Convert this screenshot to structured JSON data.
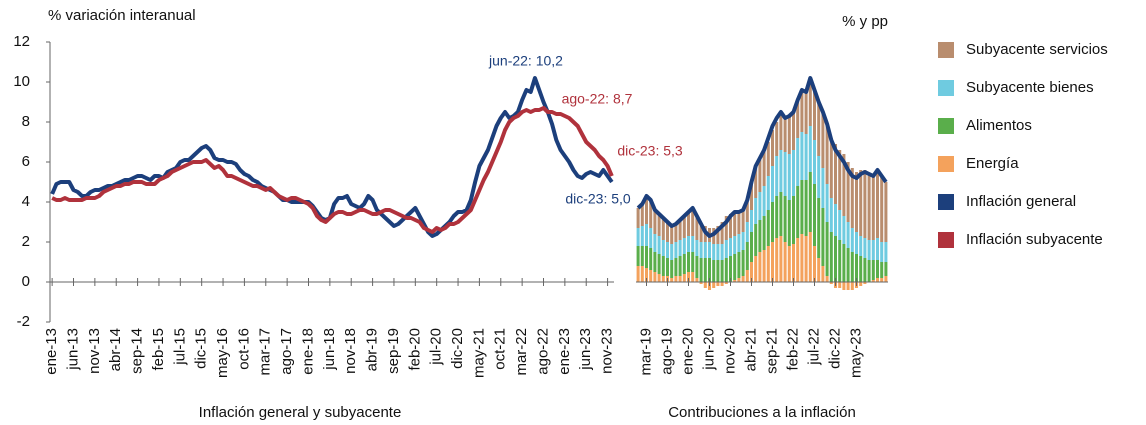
{
  "chart_data": [
    {
      "type": "line",
      "ylabel": "% variación interanual",
      "xlabel": "Inflación general y subyacente",
      "ylim": [
        -2,
        12
      ],
      "yticks": [
        -2,
        0,
        2,
        4,
        6,
        8,
        10,
        12
      ],
      "grid": false,
      "categories": [
        "ene-13",
        null,
        null,
        null,
        null,
        "jun-13",
        null,
        null,
        null,
        null,
        "nov-13",
        null,
        null,
        null,
        null,
        "abr-14",
        null,
        null,
        null,
        null,
        "sep-14",
        null,
        null,
        null,
        null,
        "feb-15",
        null,
        null,
        null,
        null,
        "jul-15",
        null,
        null,
        null,
        null,
        "dic-15",
        null,
        null,
        null,
        null,
        "may-16",
        null,
        null,
        null,
        null,
        "oct-16",
        null,
        null,
        null,
        null,
        "mar-17",
        null,
        null,
        null,
        null,
        "ago-17",
        null,
        null,
        null,
        null,
        "ene-18",
        null,
        null,
        null,
        null,
        "jun-18",
        null,
        null,
        null,
        null,
        "nov-18",
        null,
        null,
        null,
        null,
        "abr-19",
        null,
        null,
        null,
        null,
        "sep-19",
        null,
        null,
        null,
        null,
        "feb-20",
        null,
        null,
        null,
        null,
        "jul-20",
        null,
        null,
        null,
        null,
        "dic-20",
        null,
        null,
        null,
        null,
        "may-21",
        null,
        null,
        null,
        null,
        "oct-21",
        null,
        null,
        null,
        null,
        "mar-22",
        null,
        null,
        null,
        null,
        "ago-22",
        null,
        null,
        null,
        null,
        "ene-23",
        null,
        null,
        null,
        null,
        "jun-23",
        null,
        null,
        null,
        null,
        "nov-23",
        null
      ],
      "series": [
        {
          "name": "Inflación general",
          "color": "#1c3f7c",
          "values": [
            4.4,
            4.9,
            5.0,
            5.0,
            5.0,
            4.6,
            4.5,
            4.3,
            4.3,
            4.5,
            4.6,
            4.6,
            4.7,
            4.8,
            4.8,
            4.9,
            5.0,
            5.1,
            5.1,
            5.2,
            5.3,
            5.3,
            5.2,
            5.1,
            5.3,
            5.3,
            5.2,
            5.5,
            5.6,
            5.7,
            6.0,
            6.1,
            6.1,
            6.3,
            6.5,
            6.7,
            6.8,
            6.6,
            6.2,
            6.1,
            6.1,
            6.0,
            6.0,
            5.9,
            5.6,
            5.4,
            5.3,
            5.1,
            5.0,
            4.8,
            4.7,
            4.6,
            4.5,
            4.3,
            4.1,
            4.1,
            4.0,
            4.0,
            4.0,
            4.0,
            4.0,
            3.8,
            3.5,
            3.2,
            3.1,
            3.2,
            3.9,
            4.2,
            4.2,
            4.3,
            3.9,
            3.8,
            3.7,
            3.9,
            4.3,
            4.1,
            3.6,
            3.4,
            3.2,
            3.0,
            2.8,
            2.9,
            3.1,
            3.3,
            3.5,
            3.7,
            3.3,
            2.9,
            2.5,
            2.3,
            2.4,
            2.6,
            2.8,
            3.0,
            3.3,
            3.5,
            3.5,
            3.6,
            4.1,
            5.0,
            5.8,
            6.2,
            6.6,
            7.2,
            7.8,
            8.2,
            8.5,
            8.2,
            8.3,
            8.5,
            9.1,
            9.6,
            9.5,
            10.2,
            9.6,
            9.0,
            8.5,
            7.9,
            7.1,
            6.6,
            6.3,
            6.0,
            5.6,
            5.3,
            5.2,
            5.4,
            5.5,
            5.4,
            5.3,
            5.6,
            5.3,
            5.0
          ]
        },
        {
          "name": "Inflación subyacente",
          "color": "#b0323c",
          "values": [
            4.2,
            4.1,
            4.1,
            4.2,
            4.1,
            4.1,
            4.1,
            4.1,
            4.2,
            4.2,
            4.2,
            4.3,
            4.5,
            4.6,
            4.7,
            4.8,
            4.8,
            4.9,
            4.9,
            5.0,
            5.0,
            5.0,
            4.9,
            4.9,
            4.9,
            5.1,
            5.2,
            5.3,
            5.5,
            5.6,
            5.7,
            5.8,
            5.9,
            6.0,
            6.0,
            6.0,
            6.1,
            5.9,
            5.7,
            5.8,
            5.6,
            5.3,
            5.3,
            5.2,
            5.1,
            5.0,
            4.9,
            4.8,
            4.8,
            4.7,
            4.6,
            4.7,
            4.5,
            4.3,
            4.2,
            4.1,
            4.2,
            4.2,
            4.1,
            4.0,
            3.9,
            3.7,
            3.3,
            3.1,
            3.0,
            3.2,
            3.4,
            3.5,
            3.5,
            3.4,
            3.4,
            3.5,
            3.6,
            3.6,
            3.5,
            3.4,
            3.4,
            3.5,
            3.6,
            3.6,
            3.5,
            3.4,
            3.3,
            3.2,
            3.2,
            3.1,
            3.0,
            2.7,
            2.6,
            2.5,
            2.7,
            2.6,
            2.7,
            2.9,
            2.9,
            3.0,
            3.2,
            3.4,
            3.6,
            4.1,
            4.6,
            5.1,
            5.5,
            6.0,
            6.5,
            7.0,
            7.6,
            8.0,
            8.2,
            8.3,
            8.5,
            8.6,
            8.5,
            8.6,
            8.6,
            8.7,
            8.5,
            8.5,
            8.4,
            8.4,
            8.3,
            8.2,
            8.0,
            7.8,
            7.4,
            7.0,
            6.8,
            6.6,
            6.3,
            6.1,
            5.8,
            5.3
          ]
        }
      ],
      "annotations": [
        {
          "text": "jun-22: 10,2",
          "color": "#1c3f7c"
        },
        {
          "text": "ago-22: 8,7",
          "color": "#b0323c"
        },
        {
          "text": "dic-23: 5,3",
          "color": "#b0323c"
        },
        {
          "text": "dic-23: 5,0",
          "color": "#1c3f7c"
        }
      ]
    },
    {
      "type": "bar",
      "stacked": true,
      "ylabel": "% y pp",
      "xlabel": "Contribuciones a la inflación",
      "ylim": [
        -2,
        12
      ],
      "categories": [
        null,
        null,
        "mar-19",
        null,
        null,
        null,
        null,
        "ago-19",
        null,
        null,
        null,
        null,
        "ene-20",
        null,
        null,
        null,
        null,
        "jun-20",
        null,
        null,
        null,
        null,
        "nov-20",
        null,
        null,
        null,
        null,
        "abr-21",
        null,
        null,
        null,
        null,
        "sep-21",
        null,
        null,
        null,
        null,
        "feb-22",
        null,
        null,
        null,
        null,
        "jul-22",
        null,
        null,
        null,
        null,
        "dic-22",
        null,
        null,
        null,
        null,
        "may-23",
        null,
        null,
        null,
        null,
        null,
        null,
        null
      ],
      "series": [
        {
          "name": "Energía",
          "color": "#f4a25c",
          "values": [
            0.8,
            0.8,
            0.7,
            0.6,
            0.5,
            0.4,
            0.3,
            0.3,
            0.2,
            0.3,
            0.3,
            0.4,
            0.5,
            0.5,
            0.2,
            -0.1,
            -0.3,
            -0.4,
            -0.3,
            -0.2,
            -0.2,
            -0.1,
            0.0,
            0.1,
            0.2,
            0.3,
            0.6,
            1.0,
            1.3,
            1.5,
            1.6,
            1.8,
            2.0,
            2.2,
            2.3,
            2.0,
            1.8,
            1.9,
            2.2,
            2.4,
            2.3,
            2.5,
            1.8,
            1.2,
            0.8,
            0.3,
            -0.1,
            -0.3,
            -0.3,
            -0.4,
            -0.4,
            -0.4,
            -0.3,
            -0.2,
            -0.1,
            0.0,
            0.1,
            0.2,
            0.2,
            0.3
          ]
        },
        {
          "name": "Alimentos",
          "color": "#5aae4b",
          "values": [
            1.0,
            1.0,
            1.1,
            1.1,
            1.0,
            1.0,
            1.0,
            0.9,
            0.9,
            0.9,
            1.0,
            1.0,
            1.0,
            1.0,
            1.1,
            1.2,
            1.2,
            1.2,
            1.1,
            1.1,
            1.1,
            1.2,
            1.3,
            1.3,
            1.3,
            1.3,
            1.4,
            1.5,
            1.6,
            1.6,
            1.7,
            1.8,
            2.0,
            2.1,
            2.2,
            2.3,
            2.3,
            2.4,
            2.6,
            2.7,
            2.8,
            3.0,
            3.1,
            3.0,
            2.9,
            2.7,
            2.5,
            2.3,
            2.1,
            1.9,
            1.7,
            1.5,
            1.4,
            1.3,
            1.2,
            1.1,
            1.0,
            0.9,
            0.8,
            0.7
          ]
        },
        {
          "name": "Subyacente bienes",
          "color": "#6fcbe0",
          "values": [
            0.9,
            1.0,
            1.1,
            1.0,
            0.9,
            0.9,
            0.8,
            0.8,
            0.8,
            0.8,
            0.8,
            0.8,
            0.8,
            0.8,
            0.8,
            0.8,
            0.8,
            0.8,
            0.8,
            0.8,
            0.8,
            0.9,
            0.9,
            0.9,
            0.9,
            0.9,
            1.0,
            1.1,
            1.3,
            1.4,
            1.5,
            1.7,
            1.8,
            2.0,
            2.1,
            2.2,
            2.3,
            2.3,
            2.4,
            2.4,
            2.3,
            2.3,
            2.2,
            2.1,
            2.0,
            1.9,
            1.7,
            1.6,
            1.5,
            1.4,
            1.3,
            1.2,
            1.1,
            1.0,
            1.0,
            1.0,
            1.0,
            1.1,
            1.0,
            1.0
          ]
        },
        {
          "name": "Subyacente servicios",
          "color": "#b98d6e",
          "values": [
            1.0,
            1.1,
            1.4,
            1.4,
            1.2,
            1.1,
            1.1,
            1.0,
            0.9,
            0.9,
            1.0,
            1.1,
            1.2,
            1.4,
            1.2,
            0.9,
            0.8,
            0.7,
            0.8,
            0.9,
            1.1,
            1.2,
            1.2,
            1.2,
            1.1,
            1.1,
            1.1,
            1.4,
            1.6,
            1.7,
            1.8,
            1.7,
            1.8,
            1.7,
            1.9,
            1.7,
            1.9,
            1.9,
            1.9,
            2.1,
            2.1,
            2.4,
            2.5,
            2.7,
            2.8,
            3.0,
            3.0,
            3.0,
            3.0,
            3.1,
            3.0,
            3.0,
            3.0,
            3.3,
            3.4,
            3.3,
            3.2,
            3.4,
            3.3,
            3.0
          ]
        },
        {
          "type": "line",
          "color": "#1c3f7c",
          "values": [
            3.7,
            3.9,
            4.3,
            4.1,
            3.6,
            3.4,
            3.2,
            3.0,
            2.8,
            2.9,
            3.1,
            3.3,
            3.5,
            3.7,
            3.3,
            2.9,
            2.5,
            2.3,
            2.4,
            2.6,
            2.8,
            3.0,
            3.3,
            3.5,
            3.5,
            3.6,
            4.1,
            5.0,
            5.8,
            6.2,
            6.6,
            7.2,
            7.8,
            8.2,
            8.5,
            8.2,
            8.3,
            8.5,
            9.1,
            9.6,
            9.5,
            10.2,
            9.6,
            9.0,
            8.5,
            7.9,
            7.1,
            6.6,
            6.3,
            6.0,
            5.6,
            5.3,
            5.2,
            5.4,
            5.5,
            5.4,
            5.3,
            5.6,
            5.3,
            5.0
          ]
        }
      ]
    }
  ]
}
